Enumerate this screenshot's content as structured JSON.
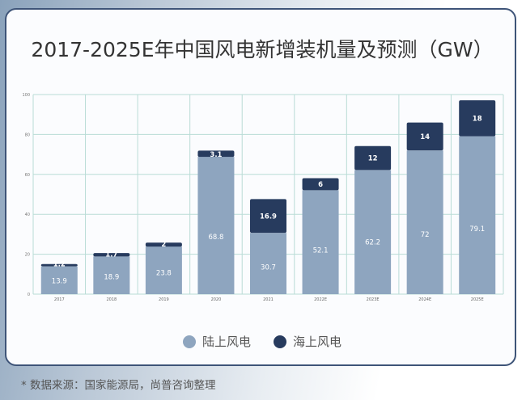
{
  "chart_data": {
    "type": "bar",
    "stacked": true,
    "title": "2017-2025E年中国风电新增装机量及预测（GW）",
    "categories": [
      "2017",
      "2018",
      "2019",
      "2020",
      "2021",
      "2022E",
      "2023E",
      "2024E",
      "2025E"
    ],
    "series": [
      {
        "name": "陆上风电",
        "color": "#8ea5bf",
        "values": [
          13.9,
          18.9,
          23.8,
          68.8,
          30.7,
          52.1,
          62.2,
          72,
          79.1
        ]
      },
      {
        "name": "海上风电",
        "color": "#273b5e",
        "values": [
          1.2,
          1.7,
          2,
          3.1,
          16.9,
          6,
          12,
          14,
          18
        ]
      }
    ],
    "ylim": [
      0,
      100
    ],
    "yticks": [
      0,
      20,
      40,
      60,
      80,
      100
    ],
    "grid": true,
    "legend": "bottom"
  },
  "source": "* 数据来源：国家能源局，尚普咨询整理"
}
